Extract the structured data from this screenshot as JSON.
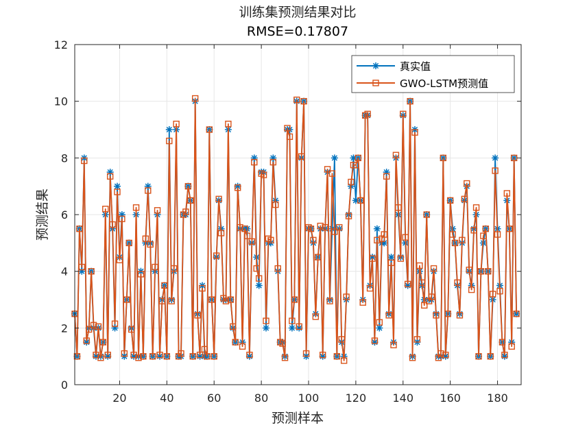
{
  "chart_data": {
    "type": "line",
    "title": "训练集预测结果对比",
    "subtitle": "RMSE=0.17807",
    "xlabel": "预测样本",
    "ylabel": "预测结果",
    "xlim": [
      1,
      190
    ],
    "ylim": [
      0,
      12
    ],
    "xticks": [
      20,
      40,
      60,
      80,
      100,
      120,
      140,
      160,
      180
    ],
    "yticks": [
      0,
      2,
      4,
      6,
      8,
      10,
      12
    ],
    "grid": true,
    "legend_position": "top-right",
    "series": [
      {
        "name": "真实值",
        "color": "#0072BD",
        "marker": "asterisk",
        "values": [
          2.5,
          1.0,
          5.5,
          4.0,
          8.0,
          1.5,
          2.0,
          4.0,
          2.0,
          1.0,
          2.0,
          1.0,
          1.5,
          6.0,
          1.0,
          7.5,
          5.5,
          2.0,
          7.0,
          4.5,
          6.0,
          1.0,
          3.0,
          5.0,
          2.0,
          1.0,
          6.0,
          1.0,
          4.0,
          1.0,
          5.0,
          7.0,
          5.0,
          1.0,
          4.0,
          6.0,
          1.0,
          3.0,
          3.5,
          1.0,
          9.0,
          3.0,
          4.0,
          9.0,
          1.0,
          1.0,
          6.0,
          6.0,
          7.0,
          6.5,
          1.0,
          10.0,
          2.5,
          1.0,
          3.5,
          1.0,
          1.0,
          9.0,
          3.0,
          1.0,
          4.5,
          6.5,
          5.5,
          3.0,
          3.0,
          9.0,
          3.0,
          2.0,
          1.5,
          7.0,
          5.5,
          1.5,
          5.5,
          5.5,
          1.0,
          5.0,
          8.0,
          4.5,
          3.5,
          7.5,
          7.5,
          2.0,
          5.0,
          5.0,
          8.0,
          6.5,
          4.0,
          1.5,
          1.5,
          1.0,
          9.0,
          9.0,
          2.0,
          3.0,
          10.0,
          2.0,
          8.0,
          10.0,
          1.0,
          5.5,
          5.5,
          5.0,
          2.5,
          4.5,
          5.5,
          1.0,
          5.5,
          7.5,
          3.0,
          5.5,
          8.0,
          1.0,
          5.5,
          1.5,
          1.0,
          3.0,
          6.0,
          7.0,
          8.0,
          6.5,
          8.0,
          6.5,
          3.0,
          9.5,
          9.5,
          3.5,
          4.5,
          1.5,
          5.5,
          2.0,
          5.0,
          5.0,
          7.5,
          2.5,
          4.5,
          1.5,
          8.0,
          6.0,
          4.5,
          9.5,
          5.0,
          3.5,
          10.0,
          1.0,
          9.0,
          1.5,
          4.0,
          3.5,
          3.0,
          6.0,
          3.0,
          3.0,
          4.0,
          2.5,
          1.0,
          1.0,
          8.0,
          1.0,
          2.5,
          6.5,
          5.5,
          5.0,
          3.5,
          2.5,
          5.0,
          6.5,
          7.0,
          4.0,
          3.5,
          5.5,
          6.0,
          1.0,
          4.0,
          5.0,
          5.5,
          4.0,
          1.0,
          3.0,
          8.0,
          5.5,
          3.5,
          1.5,
          1.0,
          6.5,
          5.5,
          1.5,
          8.0,
          2.5
        ]
      },
      {
        "name": "GWO-LSTM预测值",
        "color": "#D95319",
        "marker": "square",
        "values": [
          2.5,
          1.0,
          5.5,
          4.15,
          7.9,
          1.55,
          1.95,
          4.0,
          2.1,
          1.05,
          2.05,
          0.95,
          1.5,
          6.2,
          1.05,
          7.35,
          5.65,
          2.15,
          6.8,
          4.4,
          5.85,
          1.1,
          3.0,
          5.0,
          1.95,
          1.05,
          6.25,
          0.95,
          3.9,
          1.0,
          5.15,
          6.85,
          4.95,
          1.0,
          4.15,
          6.15,
          1.05,
          2.95,
          3.5,
          1.0,
          8.6,
          2.95,
          4.1,
          9.2,
          1.0,
          1.1,
          6.0,
          6.1,
          7.0,
          6.5,
          1.0,
          10.1,
          2.45,
          1.05,
          3.4,
          1.25,
          1.0,
          9.0,
          3.0,
          1.0,
          4.55,
          6.55,
          5.35,
          3.05,
          2.95,
          9.2,
          3.0,
          2.05,
          1.5,
          6.95,
          5.55,
          1.35,
          5.5,
          5.25,
          1.05,
          5.05,
          7.85,
          4.1,
          3.75,
          7.45,
          7.4,
          2.25,
          5.15,
          5.1,
          7.85,
          6.35,
          4.1,
          1.5,
          1.45,
          0.95,
          9.05,
          8.75,
          2.25,
          3.0,
          10.05,
          2.05,
          8.05,
          10.0,
          1.1,
          5.55,
          5.5,
          5.1,
          2.4,
          4.5,
          5.6,
          1.05,
          5.55,
          7.6,
          2.95,
          7.45,
          5.4,
          1.0,
          5.55,
          1.6,
          0.85,
          3.1,
          5.95,
          7.15,
          7.75,
          7.75,
          8.0,
          6.5,
          2.9,
          9.5,
          9.55,
          3.4,
          4.45,
          1.55,
          5.1,
          2.2,
          5.15,
          5.3,
          7.35,
          2.45,
          4.3,
          1.4,
          8.1,
          6.25,
          4.45,
          9.55,
          5.2,
          3.55,
          10.0,
          0.95,
          8.9,
          1.6,
          4.2,
          3.6,
          2.8,
          6.0,
          2.95,
          3.1,
          4.1,
          2.45,
          0.95,
          1.1,
          8.0,
          1.05,
          2.5,
          6.5,
          5.3,
          5.0,
          3.6,
          2.45,
          5.1,
          6.55,
          7.1,
          4.05,
          3.35,
          5.45,
          6.25,
          1.0,
          4.0,
          5.25,
          5.5,
          4.0,
          1.0,
          3.2,
          7.55,
          5.3,
          3.3,
          1.5,
          1.05,
          6.75,
          5.5,
          1.35,
          8.0,
          2.5
        ]
      }
    ]
  }
}
